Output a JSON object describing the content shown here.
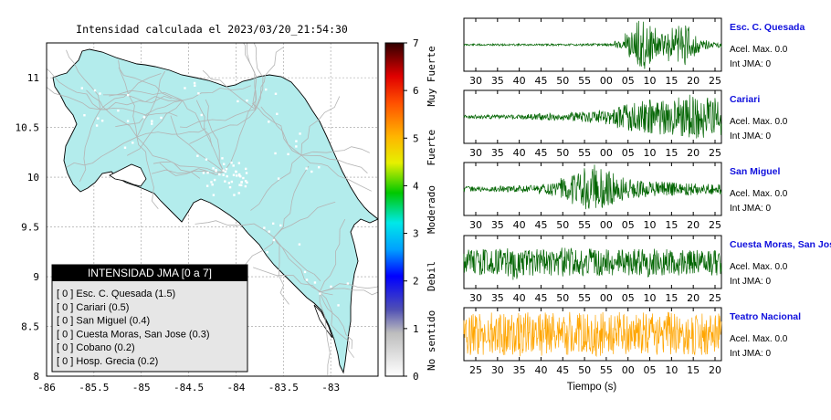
{
  "map": {
    "title": "Intensidad calculada el 2023/03/20_21:54:30",
    "lon_ticks": [
      "-86",
      "-85.5",
      "-85",
      "-84.5",
      "-84",
      "-83.5",
      "-83"
    ],
    "lat_ticks": [
      "8",
      "8.5",
      "9",
      "9.5",
      "10",
      "10.5",
      "11"
    ],
    "lon_range": [
      -86,
      -82.5
    ],
    "lat_range": [
      8,
      11.35
    ],
    "colors": {
      "land": "#b3ecec",
      "roads": "#b4b4b4",
      "grid": "#999999",
      "cities": "#ffffff"
    }
  },
  "colorbar": {
    "ticks": [
      "0",
      "1",
      "2",
      "3",
      "4",
      "5",
      "6",
      "7"
    ],
    "range": [
      0,
      7
    ],
    "categories": [
      "No sentido",
      "Debil",
      "Moderado",
      "Fuerte",
      "Muy Fuerte"
    ]
  },
  "legend": {
    "title": "INTENSIDAD JMA [0 a 7]",
    "items": [
      {
        "text": "[ 0 ]  Esc. C. Quesada (1.5)"
      },
      {
        "text": "[ 0 ]  Cariari (0.5)"
      },
      {
        "text": "[ 0 ]  San Miguel (0.4)"
      },
      {
        "text": "[ 0 ]  Cuesta Moras, San Jose (0.3)"
      },
      {
        "text": "[ 0 ]  Cobano (0.2)"
      },
      {
        "text": "[ 0 ]  Hosp. Grecia (0.2)"
      }
    ]
  },
  "stations": [
    {
      "name": "Esc. C. Quesada",
      "acel": "Acel. Max. 0.0",
      "jma": "Int JMA: 0",
      "ticks": [
        "30",
        "35",
        "40",
        "45",
        "50",
        "55",
        "00",
        "05",
        "10",
        "15",
        "20",
        "25"
      ],
      "color": "#006400"
    },
    {
      "name": "Cariari",
      "acel": "Acel. Max. 0.0",
      "jma": "Int JMA: 0",
      "ticks": [
        "30",
        "35",
        "40",
        "45",
        "50",
        "55",
        "00",
        "05",
        "10",
        "15",
        "20",
        "25"
      ],
      "color": "#006400"
    },
    {
      "name": "San Miguel",
      "acel": "Acel. Max. 0.0",
      "jma": "Int JMA: 0",
      "ticks": [
        "30",
        "35",
        "40",
        "45",
        "50",
        "55",
        "00",
        "05",
        "10",
        "15",
        "20",
        "25"
      ],
      "color": "#006400"
    },
    {
      "name": "Cuesta Moras, San Jose",
      "acel": "Acel. Max. 0.0",
      "jma": "Int JMA: 0",
      "ticks": [
        "30",
        "35",
        "40",
        "45",
        "50",
        "55",
        "00",
        "05",
        "10",
        "15",
        "20",
        "25"
      ],
      "color": "#006400"
    },
    {
      "name": "Teatro Nacional",
      "acel": "Acel. Max. 0.0",
      "jma": "Int JMA: 0",
      "ticks": [
        "25",
        "30",
        "35",
        "40",
        "45",
        "50",
        "55",
        "00",
        "05",
        "10",
        "15",
        "20"
      ],
      "color": "#ffa500"
    }
  ],
  "xaxis_label": "Tiempo (s)",
  "chart_data": [
    {
      "type": "map",
      "title": "Intensidad calculada el 2023/03/20_21:54:30",
      "x_ticks": [
        "-86",
        "-85.5",
        "-85",
        "-84.5",
        "-84",
        "-83.5",
        "-83"
      ],
      "y_ticks": [
        "8",
        "8.5",
        "9",
        "9.5",
        "10",
        "10.5",
        "11"
      ],
      "xlim": [
        -86,
        -82.5
      ],
      "ylim": [
        8,
        11.35
      ],
      "colorbar": {
        "min": 0,
        "max": 7,
        "ticks": [
          0,
          1,
          2,
          3,
          4,
          5,
          6,
          7
        ],
        "labels": [
          "No sentido",
          "Debil",
          "Moderado",
          "Fuerte",
          "Muy Fuerte"
        ]
      },
      "legend": {
        "title": "INTENSIDAD JMA [0 a 7]",
        "entries": [
          {
            "station": "Esc. C. Quesada",
            "jma": 0,
            "value": 1.5
          },
          {
            "station": "Cariari",
            "jma": 0,
            "value": 0.5
          },
          {
            "station": "San Miguel",
            "jma": 0,
            "value": 0.4
          },
          {
            "station": "Cuesta Moras, San Jose",
            "jma": 0,
            "value": 0.3
          },
          {
            "station": "Cobano",
            "jma": 0,
            "value": 0.2
          },
          {
            "station": "Hosp. Grecia",
            "jma": 0,
            "value": 0.2
          }
        ]
      }
    },
    {
      "type": "line",
      "xlabel": "Tiempo (s)",
      "series": [
        {
          "name": "Esc. C. Quesada",
          "acel_max": 0.0,
          "int_jma": 0,
          "color": "#006400",
          "envelope": [
            0.04,
            0.04,
            0.04,
            0.04,
            0.04,
            0.04,
            0.04,
            0.04,
            0.04,
            0.04,
            0.04,
            0.05,
            0.05,
            0.06,
            0.15,
            0.55,
            1.0,
            0.8,
            0.45,
            0.7,
            0.95,
            0.5,
            0.2,
            0.12
          ]
        },
        {
          "name": "Cariari",
          "acel_max": 0.0,
          "int_jma": 0,
          "color": "#006400",
          "envelope": [
            0.08,
            0.08,
            0.08,
            0.08,
            0.1,
            0.1,
            0.12,
            0.14,
            0.16,
            0.15,
            0.2,
            0.22,
            0.25,
            0.3,
            0.5,
            0.6,
            0.65,
            0.7,
            0.75,
            0.8,
            0.85,
            0.9,
            0.85,
            0.9
          ]
        },
        {
          "name": "San Miguel",
          "acel_max": 0.0,
          "int_jma": 0,
          "color": "#006400",
          "envelope": [
            0.1,
            0.1,
            0.1,
            0.12,
            0.12,
            0.15,
            0.15,
            0.22,
            0.3,
            0.45,
            0.65,
            0.85,
            1.0,
            0.75,
            0.5,
            0.4,
            0.35,
            0.3,
            0.3,
            0.28,
            0.25,
            0.25,
            0.22,
            0.22
          ]
        },
        {
          "name": "Cuesta Moras, San Jose",
          "acel_max": 0.0,
          "int_jma": 0,
          "color": "#006400",
          "envelope": [
            0.5,
            0.55,
            0.5,
            0.55,
            0.75,
            0.6,
            0.55,
            0.5,
            0.55,
            0.6,
            0.5,
            0.55,
            0.6,
            0.55,
            0.5,
            0.55,
            0.6,
            0.65,
            0.55,
            0.5,
            0.55,
            0.5,
            0.5,
            0.55
          ]
        },
        {
          "name": "Teatro Nacional",
          "acel_max": 0.0,
          "int_jma": 0,
          "color": "#ffa500",
          "envelope": [
            0.85,
            0.85,
            0.9,
            0.85,
            0.85,
            0.9,
            0.85,
            0.9,
            0.85,
            0.9,
            0.85,
            0.85,
            0.9,
            0.85,
            0.9,
            0.85,
            0.9,
            0.85,
            0.85,
            0.9,
            0.85,
            0.9,
            0.85,
            0.85
          ]
        }
      ]
    }
  ]
}
